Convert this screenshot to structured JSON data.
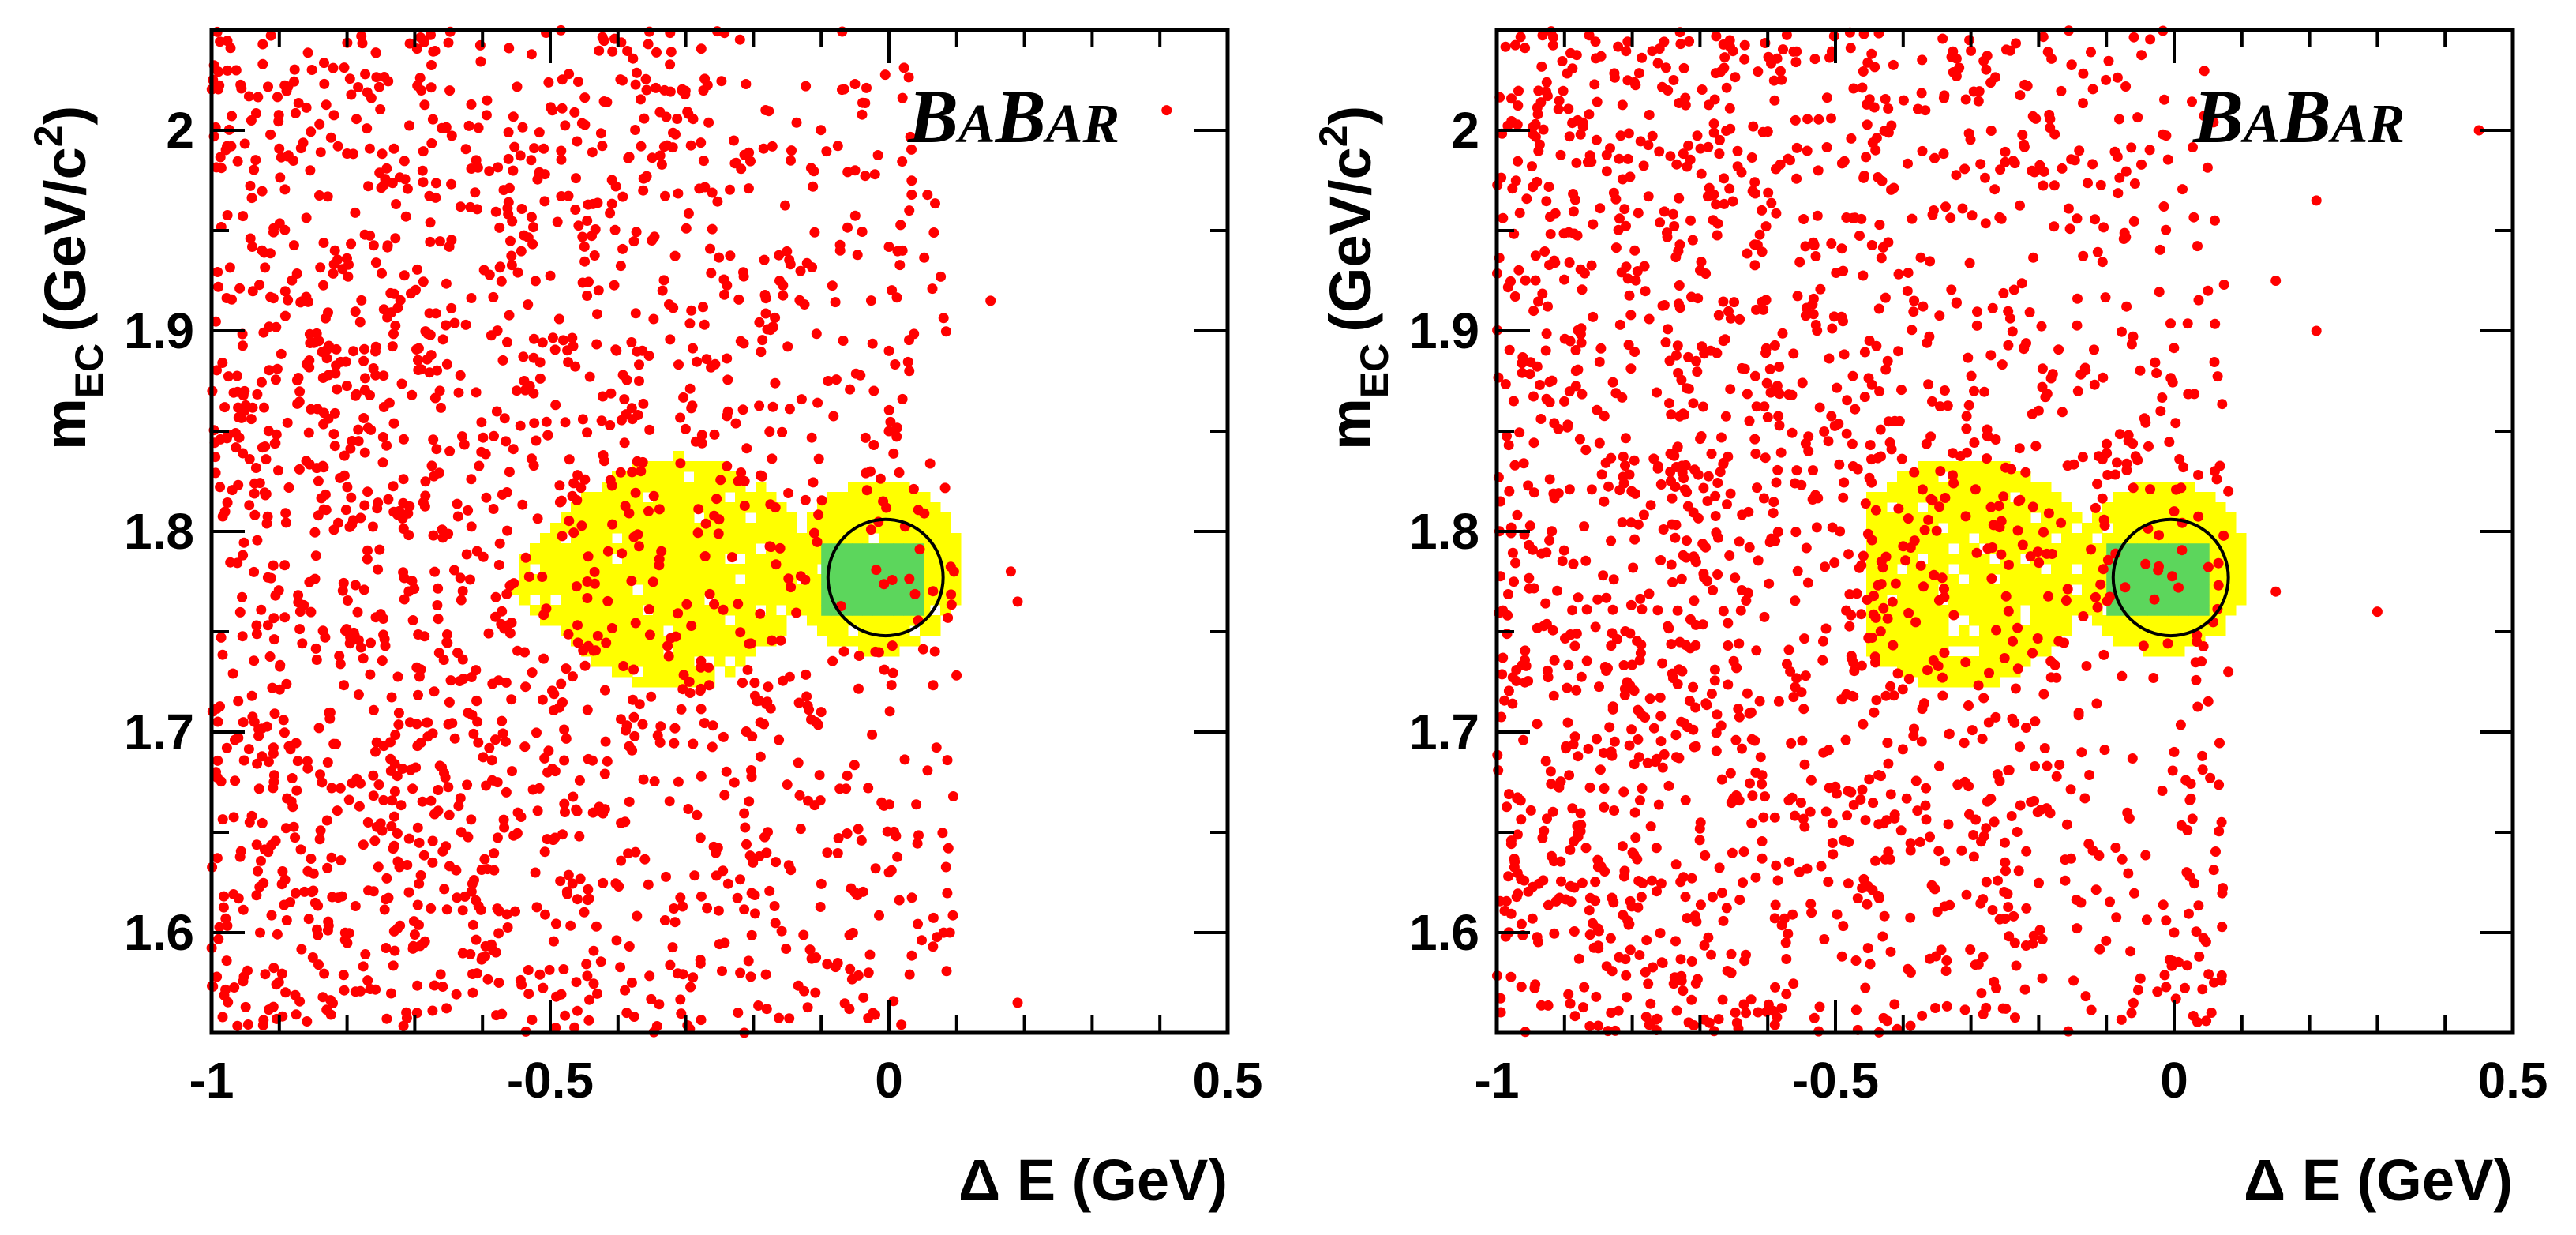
{
  "chart_data": [
    {
      "type": "scatter",
      "panel": "left",
      "xlabel": "Δ E (GeV)",
      "ylabel_main": "m",
      "ylabel_sub": "EC",
      "ylabel_unit": "(GeV/c",
      "ylabel_sup": "2",
      "ylabel_close": ")",
      "logo": {
        "b1": "B",
        "a1": "A",
        "b2": "B",
        "ar": "AR"
      },
      "xlim": [
        -1,
        0.5
      ],
      "ylim": [
        1.55,
        2.05
      ],
      "xticks": [
        -1,
        -0.5,
        0,
        0.5
      ],
      "xtick_labels": [
        "-1",
        "-0.5",
        "0",
        "0.5"
      ],
      "yticks": [
        1.6,
        1.7,
        1.8,
        1.9,
        2.0
      ],
      "ytick_labels": [
        "1.6",
        "1.7",
        "1.8",
        "1.9",
        "2"
      ],
      "signal_region": {
        "center": [
          -0.005,
          1.777
        ],
        "half_width_x": 0.085,
        "half_height_y": 0.029
      },
      "mc_band_color": "#ffff00",
      "mc_core_color": "#5cd65c",
      "points_color": "#ff0000",
      "point_density_dE_max": 0.1,
      "sparse_points": [
        [
          0.02,
          1.94
        ],
        [
          0.03,
          1.96
        ],
        [
          0.15,
          1.915
        ],
        [
          0.0,
          1.85
        ],
        [
          0.0,
          1.89
        ],
        [
          0.18,
          1.78
        ],
        [
          0.19,
          1.765
        ],
        [
          0.0,
          1.63
        ],
        [
          0.09,
          1.6
        ],
        [
          0.19,
          1.565
        ],
        [
          -0.03,
          1.58
        ],
        [
          0.41,
          2.01
        ],
        [
          -0.05,
          1.98
        ],
        [
          -0.1,
          1.71
        ],
        [
          0.03,
          1.88
        ],
        [
          -0.02,
          1.74
        ]
      ]
    },
    {
      "type": "scatter",
      "panel": "right",
      "xlabel": "Δ E (GeV)",
      "ylabel_main": "m",
      "ylabel_sub": "EC",
      "ylabel_unit": "(GeV/c",
      "ylabel_sup": "2",
      "ylabel_close": ")",
      "logo": {
        "b1": "B",
        "a1": "A",
        "b2": "B",
        "ar": "AR"
      },
      "xlim": [
        -1,
        0.5
      ],
      "ylim": [
        1.55,
        2.05
      ],
      "xticks": [
        -1,
        -0.5,
        0,
        0.5
      ],
      "xtick_labels": [
        "-1",
        "-0.5",
        "0",
        "0.5"
      ],
      "yticks": [
        1.6,
        1.7,
        1.8,
        1.9,
        2.0
      ],
      "ytick_labels": [
        "1.6",
        "1.7",
        "1.8",
        "1.9",
        "2"
      ],
      "signal_region": {
        "center": [
          -0.005,
          1.777
        ],
        "half_width_x": 0.085,
        "half_height_y": 0.029
      },
      "mc_band_color": "#ffff00",
      "mc_core_color": "#5cd65c",
      "points_color": "#ff0000",
      "point_density_dE_max": 0.08,
      "sparse_points": [
        [
          0.15,
          1.925
        ],
        [
          0.21,
          1.965
        ],
        [
          0.21,
          1.9
        ],
        [
          0.3,
          1.76
        ],
        [
          0.45,
          2.0
        ],
        [
          0.15,
          1.77
        ],
        [
          0.07,
          1.655
        ],
        [
          0.0,
          1.6
        ],
        [
          0.0,
          1.69
        ],
        [
          0.06,
          1.955
        ],
        [
          0.06,
          1.83
        ],
        [
          0.08,
          1.82
        ],
        [
          -0.02,
          1.86
        ],
        [
          0.0,
          1.81
        ],
        [
          0.05,
          1.92
        ],
        [
          0.08,
          1.73
        ]
      ]
    }
  ]
}
